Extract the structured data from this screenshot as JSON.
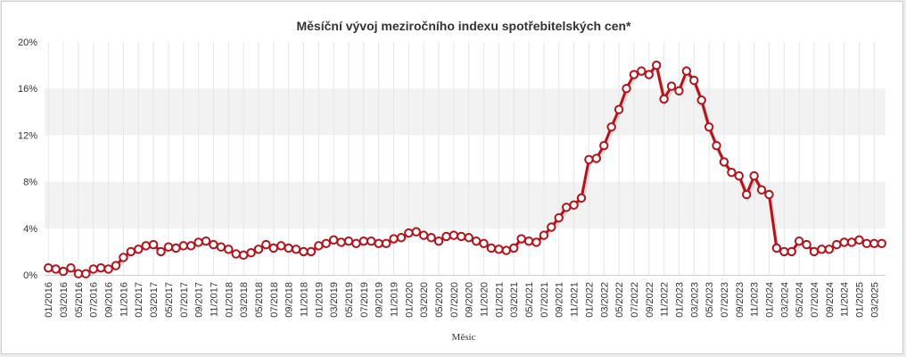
{
  "chart_data": {
    "type": "line",
    "title": "Měsíční vývoj meziročního indexu spotřebitelských cen*",
    "xlabel": "Měsíc",
    "ylabel": "",
    "ylim": [
      0,
      20
    ],
    "y_ticks": [
      "0%",
      "4%",
      "8%",
      "12%",
      "16%",
      "20%"
    ],
    "y_tick_values": [
      0,
      4,
      8,
      12,
      16,
      20
    ],
    "grid": "alternating horizontal bands",
    "legend": "none",
    "colors": {
      "line": "#b5121b",
      "marker_fill": "#ffffff",
      "band": "#f2f2f2"
    },
    "x_tick_labels": [
      "01/2016",
      "03/2016",
      "05/2016",
      "07/2016",
      "09/2016",
      "11/2016",
      "01/2017",
      "03/2017",
      "05/2017",
      "07/2017",
      "09/2017",
      "11/2017",
      "01/2018",
      "03/2018",
      "05/2018",
      "07/2018",
      "09/2018",
      "11/2018",
      "01/2019",
      "03/2019",
      "05/2019",
      "07/2019",
      "09/2019",
      "11/2019",
      "01/2020",
      "03/2020",
      "05/2020",
      "07/2020",
      "09/2020",
      "11/2020",
      "01/2021",
      "03/2021",
      "05/2021",
      "07/2021",
      "09/2021",
      "11/2021",
      "01/2022",
      "03/2022",
      "05/2022",
      "07/2022",
      "09/2022",
      "11/2022",
      "01/2023",
      "03/2023",
      "05/2023",
      "07/2023",
      "09/2023",
      "11/2023",
      "01/2024",
      "03/2024",
      "05/2024",
      "07/2024",
      "09/2024",
      "11/2024",
      "01/2025",
      "03/2025"
    ],
    "x": [
      "01/2016",
      "02/2016",
      "03/2016",
      "04/2016",
      "05/2016",
      "06/2016",
      "07/2016",
      "08/2016",
      "09/2016",
      "10/2016",
      "11/2016",
      "12/2016",
      "01/2017",
      "02/2017",
      "03/2017",
      "04/2017",
      "05/2017",
      "06/2017",
      "07/2017",
      "08/2017",
      "09/2017",
      "10/2017",
      "11/2017",
      "12/2017",
      "01/2018",
      "02/2018",
      "03/2018",
      "04/2018",
      "05/2018",
      "06/2018",
      "07/2018",
      "08/2018",
      "09/2018",
      "10/2018",
      "11/2018",
      "12/2018",
      "01/2019",
      "02/2019",
      "03/2019",
      "04/2019",
      "05/2019",
      "06/2019",
      "07/2019",
      "08/2019",
      "09/2019",
      "10/2019",
      "11/2019",
      "12/2019",
      "01/2020",
      "02/2020",
      "03/2020",
      "04/2020",
      "05/2020",
      "06/2020",
      "07/2020",
      "08/2020",
      "09/2020",
      "10/2020",
      "11/2020",
      "12/2020",
      "01/2021",
      "02/2021",
      "03/2021",
      "04/2021",
      "05/2021",
      "06/2021",
      "07/2021",
      "08/2021",
      "09/2021",
      "10/2021",
      "11/2021",
      "12/2021",
      "01/2022",
      "02/2022",
      "03/2022",
      "04/2022",
      "05/2022",
      "06/2022",
      "07/2022",
      "08/2022",
      "09/2022",
      "10/2022",
      "11/2022",
      "12/2022",
      "01/2023",
      "02/2023",
      "03/2023",
      "04/2023",
      "05/2023",
      "06/2023",
      "07/2023",
      "08/2023",
      "09/2023",
      "10/2023",
      "11/2023",
      "12/2023",
      "01/2024",
      "02/2024",
      "03/2024",
      "04/2024",
      "05/2024",
      "06/2024",
      "07/2024",
      "08/2024",
      "09/2024",
      "10/2024",
      "11/2024",
      "12/2024",
      "01/2025",
      "02/2025",
      "03/2025",
      "04/2025"
    ],
    "values": [
      0.6,
      0.5,
      0.3,
      0.6,
      0.1,
      0.1,
      0.5,
      0.6,
      0.5,
      0.8,
      1.5,
      2.0,
      2.2,
      2.5,
      2.6,
      2.0,
      2.4,
      2.3,
      2.5,
      2.5,
      2.8,
      2.9,
      2.6,
      2.4,
      2.2,
      1.8,
      1.7,
      1.9,
      2.2,
      2.6,
      2.3,
      2.5,
      2.3,
      2.2,
      2.0,
      2.0,
      2.5,
      2.7,
      3.0,
      2.8,
      2.9,
      2.7,
      2.9,
      2.9,
      2.7,
      2.7,
      3.1,
      3.2,
      3.6,
      3.7,
      3.4,
      3.2,
      2.9,
      3.3,
      3.4,
      3.3,
      3.2,
      2.9,
      2.7,
      2.3,
      2.2,
      2.1,
      2.3,
      3.1,
      2.9,
      2.8,
      3.4,
      4.1,
      4.9,
      5.8,
      6.0,
      6.6,
      9.9,
      10.0,
      11.1,
      12.7,
      14.2,
      16.0,
      17.2,
      17.5,
      17.2,
      18.0,
      15.1,
      16.2,
      15.8,
      17.5,
      16.7,
      15.0,
      12.7,
      11.1,
      9.7,
      8.8,
      8.5,
      6.9,
      8.5,
      7.3,
      6.9,
      2.3,
      2.0,
      2.0,
      2.9,
      2.6,
      2.0,
      2.2,
      2.2,
      2.6,
      2.8,
      2.8,
      3.0,
      2.7,
      2.7,
      2.7
    ]
  }
}
